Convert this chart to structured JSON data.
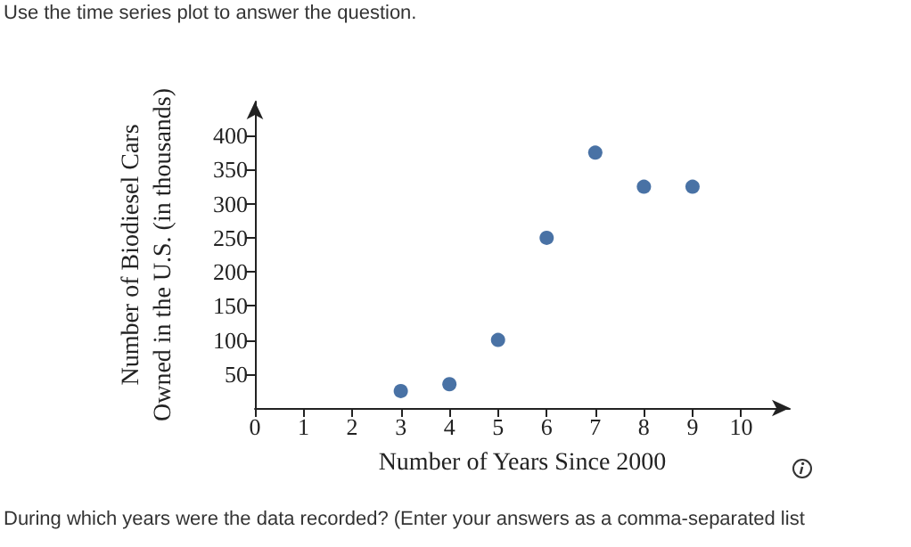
{
  "chart_data": {
    "type": "scatter",
    "xlabel": "Number of Years Since 2000",
    "ylabel": "Number of Biodiesel Cars\nOwned in the U.S. (in thousands)",
    "annotations": [
      "Use the time series plot to answer the question.",
      "During which years were the data recorded? (Enter your answers as a comma-separated list"
    ],
    "x": [
      3,
      4,
      5,
      6,
      7,
      8,
      9
    ],
    "values": [
      25,
      35,
      100,
      250,
      375,
      325,
      325
    ],
    "color": "#1b4f8f",
    "marker": "circle",
    "xlim": [
      0,
      11
    ],
    "xticks": [
      0,
      1,
      2,
      3,
      4,
      5,
      6,
      7,
      8,
      9,
      10
    ],
    "ylim": [
      0,
      450
    ],
    "yticks": [
      50,
      100,
      150,
      200,
      250,
      300,
      350,
      400
    ],
    "grid": false
  }
}
